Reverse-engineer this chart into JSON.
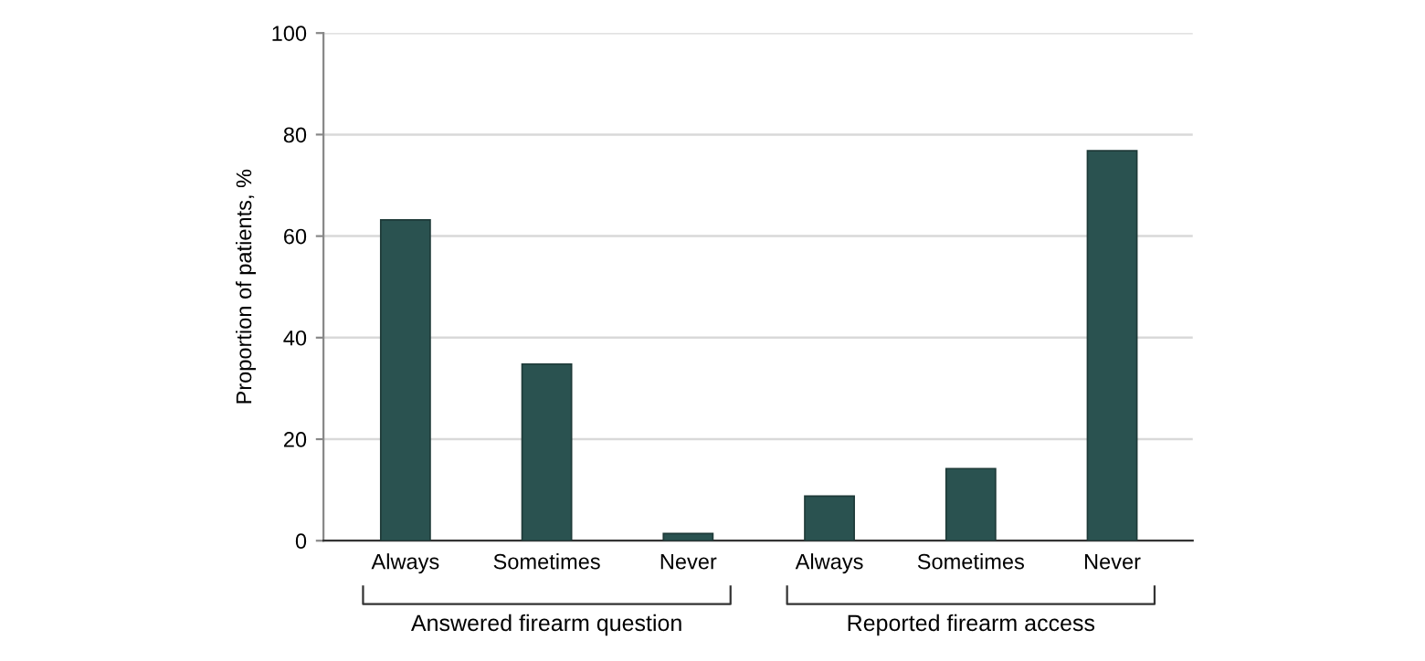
{
  "chart_data": {
    "type": "bar",
    "ylabel": "Proportion of patients, %",
    "categories": [
      "Always",
      "Sometimes",
      "Never",
      "Always",
      "Sometimes",
      "Never"
    ],
    "values": [
      63.2,
      34.8,
      1.4,
      8.8,
      14.2,
      76.8
    ],
    "color": "#2a5250",
    "ylim": [
      0,
      100
    ],
    "yticks": [
      0,
      20,
      40,
      60,
      80,
      100
    ],
    "grid": "y",
    "annotations": [
      "Answered firearm question",
      "Reported firearm access"
    ]
  }
}
